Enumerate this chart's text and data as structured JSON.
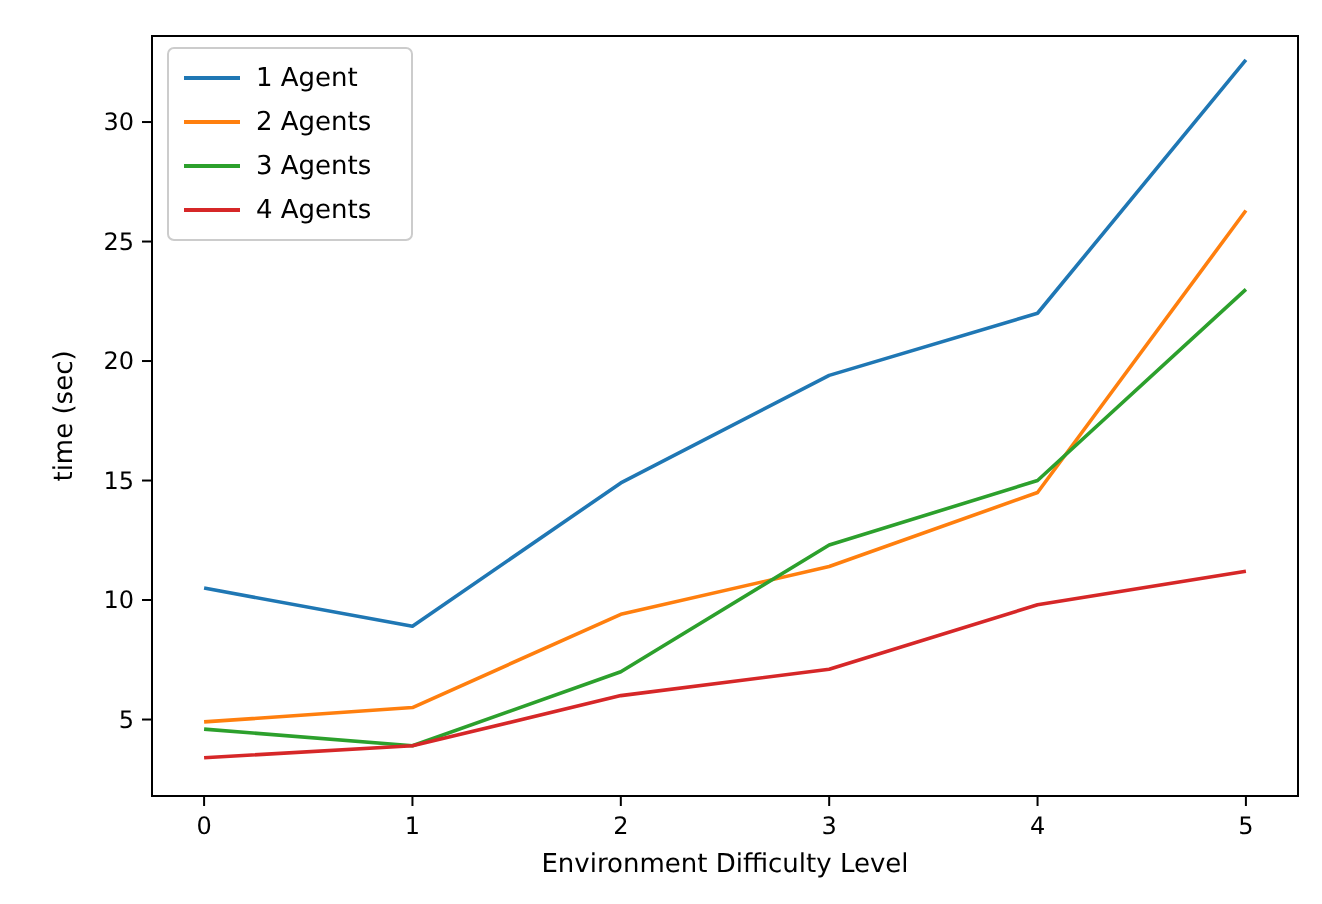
{
  "chart_data": {
    "type": "line",
    "xlabel": "Environment Difficulty Level",
    "ylabel": "time (sec)",
    "x": [
      0,
      1,
      2,
      3,
      4,
      5
    ],
    "xlim": [
      -0.25,
      5.25
    ],
    "xticks": [
      0,
      1,
      2,
      3,
      4,
      5
    ],
    "ylim": [
      1.8,
      33.6
    ],
    "yticks": [
      5,
      10,
      15,
      20,
      25,
      30
    ],
    "legend": "top left",
    "grid": false,
    "marker": "none",
    "line_style": "solid",
    "series": [
      {
        "name": "1 Agent",
        "color": "#1f77b4",
        "values": [
          10.5,
          8.9,
          14.9,
          19.4,
          22.0,
          32.6
        ]
      },
      {
        "name": "2 Agents",
        "color": "#ff7f0e",
        "values": [
          4.9,
          5.5,
          9.4,
          11.4,
          14.5,
          26.3
        ]
      },
      {
        "name": "3 Agents",
        "color": "#2ca02c",
        "values": [
          4.6,
          3.9,
          7.0,
          12.3,
          15.0,
          23.0
        ]
      },
      {
        "name": "4 Agents",
        "color": "#d62728",
        "values": [
          3.4,
          3.9,
          6.0,
          7.1,
          9.8,
          11.2
        ]
      }
    ]
  }
}
